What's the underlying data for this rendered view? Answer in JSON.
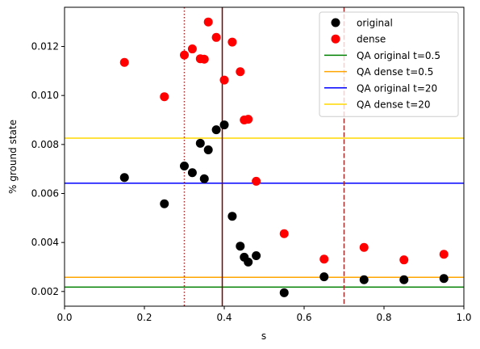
{
  "chart_data": {
    "type": "scatter",
    "xlabel": "s",
    "ylabel": "% ground state",
    "xlim": [
      0.0,
      1.0
    ],
    "ylim": [
      0.0014,
      0.0136
    ],
    "xticks": [
      0.0,
      0.2,
      0.4,
      0.6,
      0.8,
      1.0
    ],
    "xtick_labels": [
      "0.0",
      "0.2",
      "0.4",
      "0.6",
      "0.8",
      "1.0"
    ],
    "yticks": [
      0.002,
      0.004,
      0.006,
      0.008,
      0.01,
      0.012
    ],
    "ytick_labels": [
      "0.002",
      "0.004",
      "0.006",
      "0.008",
      "0.010",
      "0.012"
    ],
    "legend_position": "top-right",
    "series": [
      {
        "name": "original",
        "kind": "scatter",
        "color": "#000000",
        "x": [
          0.15,
          0.25,
          0.3,
          0.32,
          0.34,
          0.35,
          0.36,
          0.38,
          0.4,
          0.42,
          0.44,
          0.45,
          0.46,
          0.48,
          0.55,
          0.65,
          0.75,
          0.85,
          0.95
        ],
        "y": [
          0.00665,
          0.00558,
          0.00712,
          0.00685,
          0.00805,
          0.0066,
          0.00778,
          0.0086,
          0.0088,
          0.00507,
          0.00385,
          0.0034,
          0.0032,
          0.00346,
          0.00195,
          0.0026,
          0.00248,
          0.00248,
          0.00253
        ]
      },
      {
        "name": "dense",
        "kind": "scatter",
        "color": "#ff0000",
        "x": [
          0.15,
          0.25,
          0.3,
          0.32,
          0.34,
          0.35,
          0.36,
          0.38,
          0.4,
          0.42,
          0.44,
          0.45,
          0.46,
          0.48,
          0.55,
          0.65,
          0.75,
          0.85,
          0.95
        ],
        "y": [
          0.01135,
          0.00995,
          0.01165,
          0.0119,
          0.0115,
          0.01148,
          0.013,
          0.01237,
          0.01063,
          0.01218,
          0.01097,
          0.009,
          0.00903,
          0.0065,
          0.00436,
          0.00332,
          0.0038,
          0.00329,
          0.00352
        ]
      },
      {
        "name": "QA original t=0.5",
        "kind": "hline",
        "color": "#008000",
        "y": 0.00218
      },
      {
        "name": "QA dense t=0.5",
        "kind": "hline",
        "color": "#ffa500",
        "y": 0.00258
      },
      {
        "name": "QA original t=20",
        "kind": "hline",
        "color": "#0000ff",
        "y": 0.00642
      },
      {
        "name": "QA dense t=20",
        "kind": "hline",
        "color": "#ffd700",
        "y": 0.00826
      }
    ],
    "vlines": [
      {
        "x": 0.3,
        "color": "#a52a2a",
        "style": "dotted"
      },
      {
        "x": 0.395,
        "color": "#800000",
        "style": "solid"
      },
      {
        "x": 0.7,
        "color": "#a52a2a",
        "style": "dashed"
      }
    ]
  }
}
